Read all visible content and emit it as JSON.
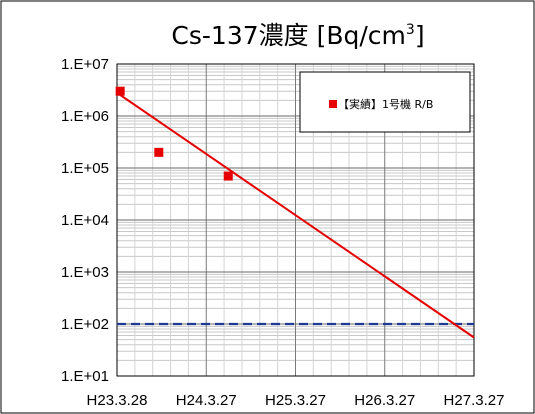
{
  "chart_data": {
    "type": "scatter",
    "title_main": "Cs-137濃度 [Bq/cm",
    "title_sup": "3",
    "title_end": "]",
    "x_ticks": [
      "H23.3.28",
      "H24.3.27",
      "H25.3.27",
      "H26.3.27",
      "H27.3.27"
    ],
    "y_ticks": [
      "1.E+01",
      "1.E+02",
      "1.E+03",
      "1.E+04",
      "1.E+05",
      "1.E+06",
      "1.E+07"
    ],
    "y_scale": "log",
    "ylim": [
      10,
      10000000
    ],
    "xlim": [
      "H23.3.28",
      "H27.3.27"
    ],
    "grid": true,
    "legend_position": "top-right",
    "series": [
      {
        "name": "【実績】1号機 R/B",
        "color": "#e60000",
        "marker": "square",
        "points": [
          {
            "x": "H23.4.10",
            "y": 3000000
          },
          {
            "x": "H23.9.15",
            "y": 200000
          },
          {
            "x": "H24.6.25",
            "y": 70000
          }
        ]
      }
    ],
    "trend_line": {
      "color": "#e60000",
      "start": {
        "x": "H23.3.28",
        "y": 2800000
      },
      "end": {
        "x": "H27.3.27",
        "y": 55
      }
    },
    "reference_line": {
      "color": "#1f3a93",
      "style": "dashed",
      "y": 100
    }
  }
}
